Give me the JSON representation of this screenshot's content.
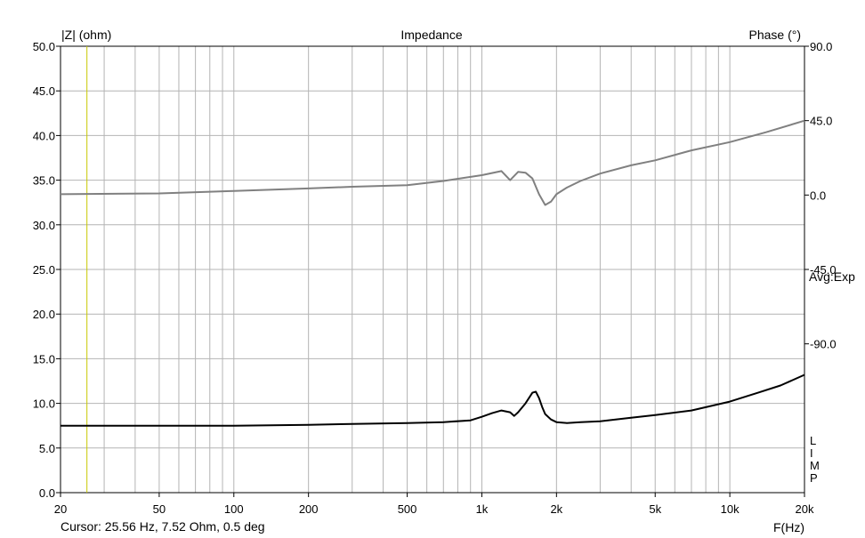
{
  "chart_data": {
    "type": "line",
    "title": "Impedance",
    "ylabel": "|Z| (ohm)",
    "y2label": "Phase (°)",
    "xlabel": "F(Hz)",
    "x_scale": "log",
    "xlim": [
      20,
      20000
    ],
    "ylim": [
      0,
      50
    ],
    "y2lim": [
      -180,
      90
    ],
    "grid": true,
    "x_ticks": [
      20,
      50,
      100,
      200,
      500,
      1000,
      2000,
      5000,
      10000,
      20000
    ],
    "x_tick_labels": [
      "20",
      "50",
      "100",
      "200",
      "500",
      "1k",
      "2k",
      "5k",
      "10k",
      "20k"
    ],
    "y_ticks": [
      0,
      5,
      10,
      15,
      20,
      25,
      30,
      35,
      40,
      45,
      50
    ],
    "y_tick_labels": [
      "0.0",
      "5.0",
      "10.0",
      "15.0",
      "20.0",
      "25.0",
      "30.0",
      "35.0",
      "40.0",
      "45.0",
      "50.0"
    ],
    "y2_ticks": [
      90,
      45,
      0,
      -45,
      -90
    ],
    "y2_tick_labels": [
      "90.0",
      "45.0",
      "0.0",
      "-45.0",
      "-90.0"
    ],
    "side_label": "Avg:Exp",
    "limp_letters": [
      "L",
      "I",
      "M",
      "P"
    ],
    "cursor": {
      "x": 25.56,
      "label": "Cursor: 25.56 Hz, 7.52 Ohm, 0.5 deg"
    },
    "series": [
      {
        "axis": "left",
        "color": "#000000",
        "x": [
          20,
          50,
          100,
          200,
          300,
          500,
          700,
          900,
          1000,
          1100,
          1200,
          1300,
          1350,
          1400,
          1500,
          1600,
          1650,
          1700,
          1750,
          1800,
          1900,
          2000,
          2200,
          2500,
          3000,
          4000,
          5000,
          7000,
          10000,
          13000,
          16000,
          20000
        ],
        "values": [
          7.5,
          7.5,
          7.5,
          7.6,
          7.7,
          7.8,
          7.9,
          8.1,
          8.5,
          8.9,
          9.2,
          9.0,
          8.6,
          9.0,
          10.0,
          11.2,
          11.3,
          10.6,
          9.6,
          8.8,
          8.2,
          7.9,
          7.8,
          7.9,
          8.0,
          8.4,
          8.7,
          9.2,
          10.2,
          11.2,
          12.0,
          13.2
        ]
      },
      {
        "axis": "right",
        "color": "#808080",
        "x": [
          20,
          50,
          100,
          200,
          300,
          500,
          700,
          1000,
          1200,
          1300,
          1400,
          1500,
          1600,
          1700,
          1800,
          1900,
          2000,
          2200,
          2500,
          3000,
          4000,
          5000,
          7000,
          10000,
          14000,
          20000
        ],
        "values": [
          0.5,
          1.0,
          2.5,
          4.0,
          5.0,
          6.0,
          8.5,
          12.0,
          14.5,
          9.0,
          14.0,
          13.5,
          10.0,
          0.5,
          -6.0,
          -4.0,
          0.5,
          4.5,
          8.5,
          13.0,
          18.0,
          21.0,
          27.0,
          32.0,
          38.0,
          45.0
        ]
      }
    ]
  }
}
